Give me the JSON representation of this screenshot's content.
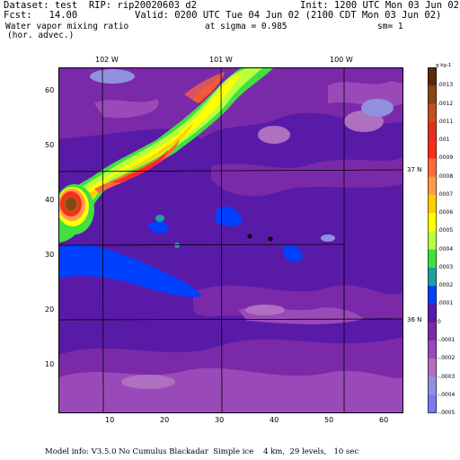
{
  "header": {
    "dataset": "Dataset: test  RIP: rip20020603 d2",
    "init": "Init: 1200 UTC Mon 03 Jun 02",
    "fcst": "Fcst:   14.00",
    "valid": "Valid: 0200 UTC Tue 04 Jun 02 (2100 CDT Mon 03 Jun 02)",
    "field": "Water vapor mixing ratio",
    "sigma": "at sigma = 0.985",
    "sm": "sm= 1",
    "advect": "(hor. advec.)"
  },
  "map": {
    "lon_labels": [
      "102 W",
      "101 W",
      "100 W"
    ],
    "lat_labels": [
      "37 N",
      "36 N"
    ],
    "x_ticks": [
      "10",
      "20",
      "30",
      "40",
      "50",
      "60"
    ],
    "y_ticks": [
      "10",
      "20",
      "30",
      "40",
      "50",
      "60"
    ]
  },
  "legend": {
    "title": "g kg-1",
    "labels": [
      ".0013",
      ".0012",
      ".0011",
      ".001",
      ".0009",
      ".0008",
      ".0007",
      ".0006",
      ".0005",
      ".0004",
      ".0003",
      ".0002",
      ".0001",
      "0",
      "-.0001",
      "-.0002",
      "-.0003",
      "-.0004",
      "-.0005"
    ],
    "colors": [
      "#5a2a0a",
      "#8b4513",
      "#c0521a",
      "#e03020",
      "#ff2a1a",
      "#ff6a3a",
      "#ff9a4a",
      "#ffd000",
      "#ffff00",
      "#b8ff40",
      "#40e040",
      "#20a0a0",
      "#0040ff",
      "#5a1aa8",
      "#7a2aa8",
      "#9a4ab8",
      "#b070c0",
      "#9090e0",
      "#7a7af0"
    ]
  },
  "footer": {
    "text": "Model info: V3.5.0 No Cumulus Blackadar  Simple ice    4 km,  29 levels,   10 sec"
  }
}
